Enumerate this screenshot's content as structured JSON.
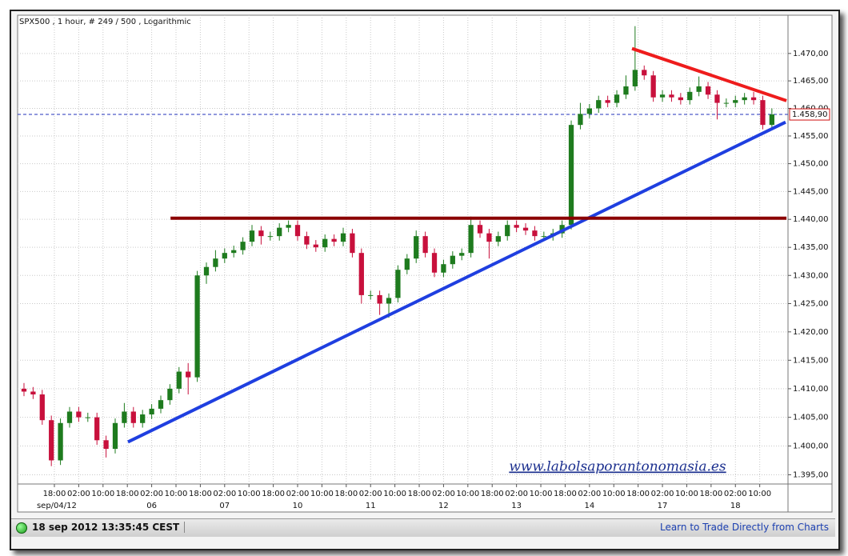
{
  "chart_data": {
    "type": "candlestick",
    "title": "SPX500 , 1 hour, # 249 / 500 , Logarithmic",
    "log_scale": true,
    "grid": true,
    "up_color": "#1e7b1e",
    "down_color": "#c8103c",
    "xlim": [
      -2.1,
      251.3
    ],
    "ylim": [
      1393.4,
      1475.1
    ],
    "yticks": [
      {
        "value": 1395,
        "label": "1.395,00"
      },
      {
        "value": 1400,
        "label": "1.400,00"
      },
      {
        "value": 1405,
        "label": "1.405,00"
      },
      {
        "value": 1410,
        "label": "1.410,00"
      },
      {
        "value": 1415,
        "label": "1.415,00"
      },
      {
        "value": 1420,
        "label": "1.420,00"
      },
      {
        "value": 1425,
        "label": "1.425,00"
      },
      {
        "value": 1430,
        "label": "1.430,00"
      },
      {
        "value": 1435,
        "label": "1.435,00"
      },
      {
        "value": 1440,
        "label": "1.440,00"
      },
      {
        "value": 1445,
        "label": "1.445,00"
      },
      {
        "value": 1450,
        "label": "1.450,00"
      },
      {
        "value": 1455,
        "label": "1.455,00"
      },
      {
        "value": 1460,
        "label": "1.460,00"
      },
      {
        "value": 1465,
        "label": "1.465,00"
      },
      {
        "value": 1470,
        "label": "1.470,00"
      }
    ],
    "xticks": [
      {
        "value": 10,
        "label": "18:00"
      },
      {
        "value": 18,
        "label": "02:00"
      },
      {
        "value": 26,
        "label": "10:00"
      },
      {
        "value": 34,
        "label": "18:00"
      },
      {
        "value": 42,
        "label": "02:00"
      },
      {
        "value": 50,
        "label": "10:00"
      },
      {
        "value": 58,
        "label": "18:00"
      },
      {
        "value": 66,
        "label": "02:00"
      },
      {
        "value": 74,
        "label": "10:00"
      },
      {
        "value": 82,
        "label": "18:00"
      },
      {
        "value": 90,
        "label": "02:00"
      },
      {
        "value": 98,
        "label": "10:00"
      },
      {
        "value": 106,
        "label": "18:00"
      },
      {
        "value": 114,
        "label": "02:00"
      },
      {
        "value": 122,
        "label": "10:00"
      },
      {
        "value": 130,
        "label": "18:00"
      },
      {
        "value": 138,
        "label": "02:00"
      },
      {
        "value": 146,
        "label": "10:00"
      },
      {
        "value": 154,
        "label": "18:00"
      },
      {
        "value": 162,
        "label": "02:00"
      },
      {
        "value": 170,
        "label": "10:00"
      },
      {
        "value": 178,
        "label": "18:00"
      },
      {
        "value": 186,
        "label": "02:00"
      },
      {
        "value": 194,
        "label": "10:00"
      },
      {
        "value": 202,
        "label": "18:00"
      },
      {
        "value": 210,
        "label": "02:00"
      },
      {
        "value": 218,
        "label": "10:00"
      },
      {
        "value": 226,
        "label": "18:00"
      },
      {
        "value": 234,
        "label": "02:00"
      },
      {
        "value": 242,
        "label": "10:00"
      }
    ],
    "date_labels": [
      {
        "value": 10,
        "label": "sep/04/12"
      },
      {
        "value": 42,
        "label": "06"
      },
      {
        "value": 66,
        "label": "07"
      },
      {
        "value": 90,
        "label": "10"
      },
      {
        "value": 114,
        "label": "11"
      },
      {
        "value": 138,
        "label": "12"
      },
      {
        "value": 162,
        "label": "13"
      },
      {
        "value": 186,
        "label": "14"
      },
      {
        "value": 210,
        "label": "17"
      },
      {
        "value": 234,
        "label": "18"
      }
    ],
    "x": [
      0,
      3,
      6,
      9,
      12,
      15,
      18,
      21,
      24,
      27,
      30,
      33,
      36,
      39,
      42,
      45,
      48,
      51,
      54,
      57,
      60,
      63,
      66,
      69,
      72,
      75,
      78,
      81,
      84,
      87,
      90,
      93,
      96,
      99,
      102,
      105,
      108,
      111,
      114,
      117,
      120,
      123,
      126,
      129,
      132,
      135,
      138,
      141,
      144,
      147,
      150,
      153,
      156,
      159,
      162,
      165,
      168,
      171,
      174,
      177,
      180,
      183,
      186,
      189,
      192,
      195,
      198,
      201,
      204,
      207,
      210,
      213,
      216,
      219,
      222,
      225,
      228,
      231,
      234,
      237,
      240,
      243,
      246
    ],
    "open": [
      1410,
      1409.5,
      1409,
      1404.5,
      1397.5,
      1404,
      1406,
      1405,
      1405,
      1401,
      1399.5,
      1404,
      1406,
      1404,
      1405.5,
      1406.5,
      1408,
      1410,
      1413,
      1412,
      1430,
      1431.5,
      1433,
      1434,
      1434.5,
      1436,
      1438,
      1437,
      1437,
      1438.5,
      1439,
      1437,
      1435.5,
      1435,
      1436.5,
      1436,
      1437.5,
      1434,
      1426.5,
      1426.5,
      1425,
      1426,
      1431,
      1433,
      1437,
      1434,
      1430.5,
      1432,
      1433.5,
      1434,
      1439,
      1437.5,
      1436,
      1437,
      1439,
      1438.5,
      1438,
      1437,
      1437,
      1437.5,
      1439,
      1457,
      1459,
      1460,
      1461.5,
      1461,
      1462.5,
      1464,
      1467,
      1466,
      1462,
      1462.5,
      1462,
      1461.5,
      1463,
      1464,
      1462.5,
      1461,
      1461,
      1461.5,
      1462,
      1461.5,
      1457
    ],
    "high": [
      1411,
      1410.3,
      1409.8,
      1405.3,
      1404.8,
      1406.8,
      1406.8,
      1405.8,
      1405.8,
      1401.8,
      1404.8,
      1407.5,
      1406.8,
      1406.3,
      1407.3,
      1408.8,
      1410.8,
      1413.8,
      1414.5,
      1430.8,
      1432.3,
      1434.5,
      1434.8,
      1435.3,
      1436.8,
      1439,
      1438.8,
      1437.8,
      1439.3,
      1439.8,
      1439.8,
      1437.8,
      1436.3,
      1437.3,
      1437.3,
      1438.5,
      1438.3,
      1434.8,
      1427.3,
      1427.3,
      1426.8,
      1431.8,
      1433.8,
      1438,
      1437.8,
      1434.8,
      1432.8,
      1434.3,
      1434.8,
      1440.5,
      1439.8,
      1438.3,
      1437.8,
      1439.8,
      1439.8,
      1439.3,
      1438.8,
      1437.8,
      1438.3,
      1439.8,
      1457.8,
      1461,
      1460.8,
      1462.3,
      1462.3,
      1463.3,
      1466,
      1475,
      1467.8,
      1466.8,
      1463.3,
      1463.3,
      1462.8,
      1463.8,
      1465.8,
      1464.8,
      1463.3,
      1461.8,
      1462.3,
      1462.8,
      1463,
      1462.3,
      1460
    ],
    "low": [
      1408.7,
      1408.2,
      1403.7,
      1396.5,
      1396.7,
      1403.2,
      1404.2,
      1404.2,
      1400.2,
      1398,
      1398.7,
      1403.2,
      1403.2,
      1403.2,
      1404.7,
      1405.7,
      1407.2,
      1409.2,
      1409,
      1411.2,
      1428.5,
      1430.7,
      1432.2,
      1433.2,
      1433.7,
      1435.2,
      1435.5,
      1436.2,
      1436.2,
      1437.7,
      1436.2,
      1434.7,
      1434.2,
      1434.2,
      1435.2,
      1435.2,
      1433.2,
      1425,
      1425.7,
      1423,
      1422.5,
      1425.2,
      1430.2,
      1432.2,
      1433.2,
      1429.7,
      1429.7,
      1431.2,
      1432.7,
      1433.2,
      1436.7,
      1433,
      1435.2,
      1436.2,
      1437.7,
      1437.2,
      1436.2,
      1436.2,
      1436.2,
      1436.7,
      1438.2,
      1456.2,
      1458.2,
      1459.2,
      1460.2,
      1460.2,
      1461.7,
      1463.2,
      1465.2,
      1461.2,
      1461.2,
      1461.2,
      1460.7,
      1460.7,
      1462.2,
      1461.7,
      1458,
      1460.2,
      1460.2,
      1460.7,
      1460.7,
      1456.2,
      1456.2
    ],
    "close": [
      1409.5,
      1409,
      1404.5,
      1397.5,
      1404,
      1406,
      1405,
      1405,
      1401,
      1399.5,
      1404,
      1406,
      1404,
      1405.5,
      1406.5,
      1408,
      1410,
      1413,
      1412,
      1430,
      1431.5,
      1433,
      1434,
      1434.5,
      1436,
      1438,
      1437,
      1437,
      1438.5,
      1439,
      1437,
      1435.5,
      1435,
      1436.5,
      1436,
      1437.5,
      1434,
      1426.5,
      1426.5,
      1425,
      1426,
      1431,
      1433,
      1437,
      1434,
      1430.5,
      1432,
      1433.5,
      1434,
      1439,
      1437.5,
      1436,
      1437,
      1439,
      1438.5,
      1438,
      1437,
      1437,
      1437.5,
      1439,
      1457,
      1459,
      1460,
      1461.5,
      1461,
      1462.5,
      1464,
      1467,
      1466,
      1462,
      1462.5,
      1462,
      1461.5,
      1463,
      1464,
      1462.5,
      1461,
      1461,
      1461.5,
      1462,
      1461.5,
      1457,
      1458.9
    ],
    "last_price": {
      "value": 1458.9,
      "label": "1.458,90"
    },
    "trendlines": [
      {
        "color": "#1f3fe0",
        "from": [
          34.2,
          1400.7
        ],
        "to": [
          250.5,
          1457.5
        ]
      },
      {
        "color": "#ee1c1c",
        "from": [
          200,
          1470.9
        ],
        "to": [
          250.8,
          1461.4
        ]
      },
      {
        "color": "#8b0000",
        "from": [
          48.2,
          1440.2
        ],
        "to": [
          250.8,
          1440.2
        ]
      }
    ],
    "annotation": "www.labolsaporantonomasia.es"
  },
  "status_bar": {
    "timestamp": "18 sep 2012 13:35:45 CEST",
    "link": "Learn to Trade Directly from Charts"
  }
}
